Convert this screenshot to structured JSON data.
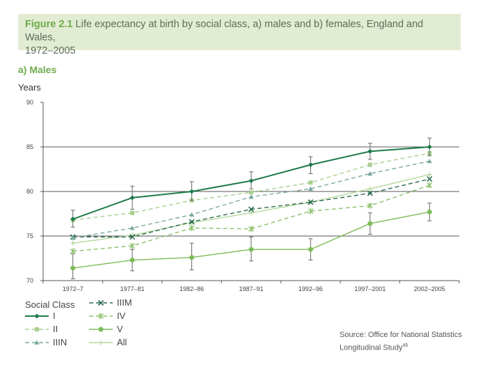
{
  "figure": {
    "number": "Figure 2.1",
    "title_line1": "Life expectancy at birth by social class, a) males and b) females, England and Wales,",
    "title_line2": "1972–2005"
  },
  "panel_label": "a) Males",
  "chart_data": {
    "type": "line",
    "ylabel": "Years",
    "ylim": [
      70,
      90
    ],
    "yticks": [
      70,
      75,
      80,
      85,
      90
    ],
    "categories": [
      "1972–7",
      "1977–81",
      "1982–86",
      "1987–91",
      "1992–96",
      "1997–2001",
      "2002–2005"
    ],
    "gridlines": [
      75,
      80,
      85
    ],
    "series": [
      {
        "name": "I",
        "style": "solid",
        "marker": "diamond",
        "color": "#1d7a4a",
        "values": [
          76.9,
          79.3,
          80.0,
          81.2,
          83.0,
          84.5,
          85.0
        ],
        "error": [
          [
            76.0,
            77.9
          ],
          [
            78.0,
            80.6
          ],
          [
            79.0,
            81.1
          ],
          [
            80.3,
            82.2
          ],
          [
            82.0,
            83.9
          ],
          [
            83.6,
            85.4
          ],
          [
            84.0,
            86.0
          ]
        ]
      },
      {
        "name": "II",
        "style": "dashed",
        "marker": "square",
        "color": "#a8d08d",
        "values": [
          76.8,
          77.6,
          79.0,
          79.9,
          81.0,
          83.0,
          84.3
        ]
      },
      {
        "name": "IIIN",
        "style": "dashed",
        "marker": "triangle",
        "color": "#7aa8a0",
        "values": [
          74.8,
          75.9,
          77.4,
          79.4,
          80.3,
          82.0,
          83.4
        ]
      },
      {
        "name": "IIIM",
        "style": "dashed",
        "marker": "x",
        "color": "#2b6a4e",
        "values": [
          74.9,
          74.9,
          76.6,
          78.0,
          78.8,
          79.8,
          81.4
        ]
      },
      {
        "name": "IV",
        "style": "dashed",
        "marker": "star",
        "color": "#8cc06a",
        "values": [
          73.3,
          73.9,
          75.9,
          75.8,
          77.8,
          78.4,
          80.7
        ]
      },
      {
        "name": "V",
        "style": "solid",
        "marker": "circle",
        "color": "#7dbb58",
        "values": [
          71.4,
          72.3,
          72.6,
          73.5,
          73.5,
          76.4,
          77.7
        ],
        "error": [
          [
            70.2,
            73.0
          ],
          [
            71.1,
            73.5
          ],
          [
            71.2,
            74.2
          ],
          [
            72.2,
            74.9
          ],
          [
            72.3,
            74.7
          ],
          [
            75.2,
            77.6
          ],
          [
            76.7,
            78.7
          ]
        ]
      },
      {
        "name": "All",
        "style": "solid",
        "marker": "plus",
        "color": "#b5d89c",
        "values": [
          74.2,
          75.1,
          76.5,
          77.6,
          78.8,
          80.3,
          81.9
        ]
      }
    ]
  },
  "legend": {
    "title": "Social Class",
    "entries": [
      "I",
      "II",
      "IIIN",
      "IIIM",
      "IV",
      "V",
      "All"
    ]
  },
  "source": {
    "line1": "Source: Office for National Statistics",
    "line2": "Longitudinal Study",
    "sup": "45"
  }
}
